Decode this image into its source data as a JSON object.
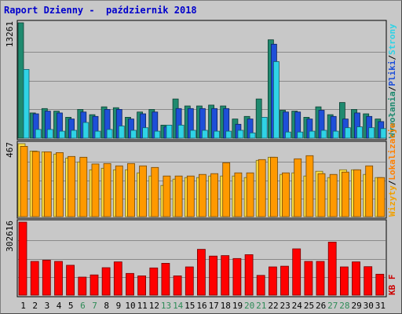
{
  "title": "Raport Dzienny -  październik 2018",
  "chart_data": [
    {
      "type": "bar",
      "panel": "top",
      "categories": [
        "1",
        "2",
        "3",
        "4",
        "5",
        "6",
        "7",
        "8",
        "9",
        "10",
        "11",
        "12",
        "13",
        "14",
        "15",
        "16",
        "17",
        "18",
        "19",
        "20",
        "21",
        "22",
        "23",
        "24",
        "25",
        "26",
        "27",
        "28",
        "29",
        "30",
        "31"
      ],
      "weekend_days": [
        "6",
        "7",
        "13",
        "14",
        "20",
        "21",
        "27",
        "28"
      ],
      "ylim": [
        0,
        13261
      ],
      "y_tick_label": "13261",
      "right_labels": [
        {
          "text": "Wywołania",
          "color": "#1f8a6f"
        },
        {
          "text": "/",
          "color": "#000000"
        },
        {
          "text": "Pliki",
          "color": "#1e4fd8"
        },
        {
          "text": "/",
          "color": "#000000"
        },
        {
          "text": "Strony",
          "color": "#2fd3e6"
        }
      ],
      "series": [
        {
          "name": "Wywołania",
          "color": "#1f8a6f",
          "values": [
            13261,
            2900,
            3400,
            3100,
            2400,
            3300,
            2700,
            3600,
            3500,
            2400,
            3000,
            3300,
            1500,
            4500,
            3700,
            3700,
            3800,
            3700,
            2200,
            2500,
            4500,
            11300,
            3200,
            3100,
            2400,
            3600,
            2700,
            4100,
            3300,
            2800,
            2200
          ]
        },
        {
          "name": "Pliki",
          "color": "#1e4fd8",
          "values": [
            null,
            2800,
            3100,
            2900,
            2200,
            3000,
            2500,
            3300,
            3300,
            2200,
            2800,
            3000,
            1300,
            3400,
            3400,
            3400,
            3400,
            3400,
            1600,
            2200,
            null,
            10800,
            3000,
            3000,
            2200,
            3200,
            2500,
            2200,
            2900,
            2500,
            1900
          ]
        },
        {
          "name": "Strony",
          "color": "#2fd3e6",
          "values": [
            7900,
            1000,
            1000,
            800,
            900,
            1800,
            800,
            1000,
            1400,
            900,
            1200,
            800,
            1500,
            1500,
            900,
            900,
            800,
            800,
            900,
            600,
            2400,
            8800,
            700,
            700,
            800,
            900,
            800,
            1200,
            1300,
            1200,
            1100
          ]
        }
      ]
    },
    {
      "type": "bar",
      "panel": "middle",
      "ylim": [
        0,
        467
      ],
      "y_tick_label": "467",
      "right_labels": [
        {
          "text": "Wizyty",
          "color": "#f0a000"
        },
        {
          "text": "/",
          "color": "#000000"
        },
        {
          "text": "Lokalizacje",
          "color": "#ff8000"
        }
      ],
      "series": [
        {
          "name": "Wizyty",
          "color": "#ffe040",
          "values": [
            467,
            420,
            415,
            400,
            375,
            350,
            300,
            310,
            300,
            300,
            280,
            260,
            200,
            240,
            250,
            250,
            260,
            260,
            260,
            250,
            360,
            380,
            270,
            280,
            260,
            290,
            250,
            300,
            300,
            270,
            250
          ]
        },
        {
          "name": "Lokalizacje",
          "color": "#ff9900",
          "values": [
            450,
            417,
            415,
            410,
            385,
            380,
            337,
            340,
            325,
            340,
            325,
            315,
            260,
            260,
            260,
            270,
            275,
            345,
            280,
            280,
            365,
            380,
            280,
            370,
            390,
            275,
            270,
            285,
            300,
            325,
            250
          ]
        }
      ]
    },
    {
      "type": "bar",
      "panel": "bottom",
      "ylim": [
        0,
        302616
      ],
      "y_tick_label": "302616",
      "right_labels": [
        {
          "text": "KB F",
          "color": "#cc0000"
        }
      ],
      "series": [
        {
          "name": "KB F",
          "color": "#ff0000",
          "values": [
            302616,
            140000,
            145000,
            140000,
            124000,
            75000,
            84000,
            114000,
            138000,
            90000,
            80000,
            113000,
            132000,
            80000,
            117000,
            190000,
            162000,
            164000,
            152000,
            168000,
            82000,
            117000,
            120000,
            192000,
            140000,
            140000,
            220000,
            117000,
            138000,
            118000,
            87000
          ]
        }
      ]
    }
  ]
}
